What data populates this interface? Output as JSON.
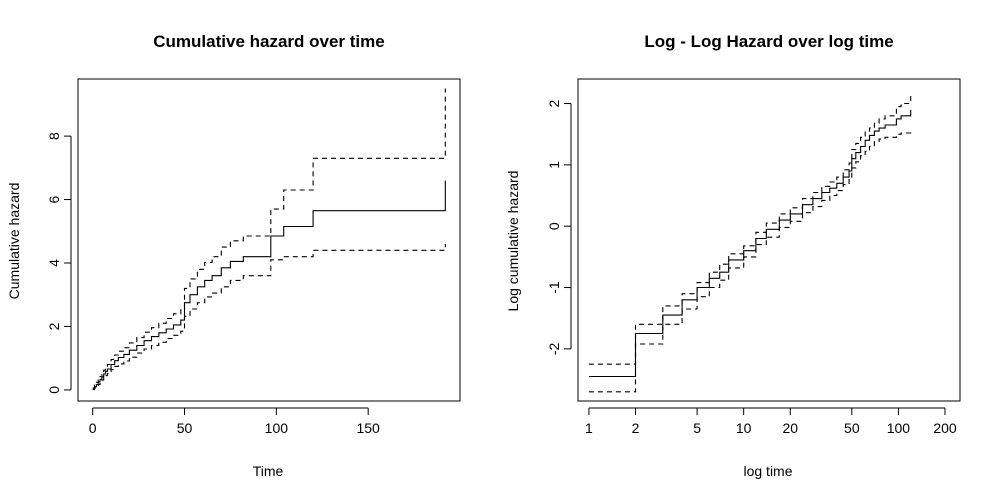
{
  "chart_data": [
    {
      "type": "line",
      "title": "Cumulative hazard over time",
      "xlabel": "Time",
      "ylabel": "Cumulative hazard",
      "xlim": [
        -8,
        200
      ],
      "ylim": [
        -0.35,
        9.8
      ],
      "xticks": [
        0,
        50,
        100,
        150
      ],
      "yticks": [
        0,
        2,
        4,
        6,
        8
      ],
      "xscale": "linear",
      "grid": false,
      "series": [
        {
          "style": "solid",
          "x": [
            0,
            1,
            2,
            3,
            4,
            5,
            6,
            7,
            8,
            10,
            12,
            14,
            17,
            20,
            24,
            28,
            32,
            36,
            40,
            44,
            48,
            50,
            53,
            57,
            61,
            65,
            70,
            75,
            82,
            97,
            104,
            120,
            192,
            192
          ],
          "y": [
            0.03,
            0.1,
            0.17,
            0.25,
            0.33,
            0.41,
            0.5,
            0.58,
            0.66,
            0.8,
            0.92,
            1.02,
            1.12,
            1.25,
            1.4,
            1.55,
            1.68,
            1.8,
            1.92,
            2.05,
            2.2,
            2.75,
            3.0,
            3.25,
            3.45,
            3.6,
            3.85,
            4.05,
            4.2,
            4.85,
            5.15,
            5.65,
            5.65,
            6.6
          ]
        },
        {
          "style": "dashed",
          "x": [
            0,
            1,
            2,
            3,
            4,
            5,
            6,
            7,
            8,
            10,
            12,
            14,
            17,
            20,
            24,
            28,
            32,
            36,
            40,
            44,
            48,
            50,
            53,
            57,
            61,
            65,
            70,
            75,
            82,
            97,
            104,
            120,
            192,
            192
          ],
          "y": [
            0.06,
            0.15,
            0.24,
            0.33,
            0.42,
            0.52,
            0.62,
            0.71,
            0.8,
            0.96,
            1.1,
            1.22,
            1.33,
            1.48,
            1.65,
            1.82,
            1.96,
            2.1,
            2.25,
            2.4,
            2.57,
            3.2,
            3.5,
            3.8,
            4.02,
            4.2,
            4.5,
            4.7,
            4.85,
            5.7,
            6.3,
            7.3,
            7.3,
            9.5
          ]
        },
        {
          "style": "dashed",
          "x": [
            0,
            1,
            2,
            3,
            4,
            5,
            6,
            7,
            8,
            10,
            12,
            14,
            17,
            20,
            24,
            28,
            32,
            36,
            40,
            44,
            48,
            50,
            53,
            57,
            61,
            65,
            70,
            75,
            82,
            97,
            104,
            120,
            192,
            192
          ],
          "y": [
            0.01,
            0.06,
            0.11,
            0.17,
            0.24,
            0.31,
            0.38,
            0.45,
            0.52,
            0.64,
            0.74,
            0.82,
            0.91,
            1.03,
            1.16,
            1.29,
            1.4,
            1.5,
            1.62,
            1.72,
            1.85,
            2.32,
            2.55,
            2.75,
            2.93,
            3.05,
            3.25,
            3.45,
            3.6,
            4.1,
            4.2,
            4.4,
            4.4,
            4.6
          ]
        }
      ]
    },
    {
      "type": "line",
      "title": "Log - Log Hazard over log time",
      "xlabel": "log time",
      "ylabel": "Log cumulative hazard",
      "xlim": [
        0.85,
        250
      ],
      "ylim": [
        -2.85,
        2.4
      ],
      "xticks": [
        1,
        2,
        5,
        10,
        20,
        50,
        100,
        200
      ],
      "yticks": [
        -2,
        -1,
        0,
        1,
        2
      ],
      "xscale": "log",
      "grid": false,
      "series": [
        {
          "style": "solid",
          "x": [
            1,
            2,
            3,
            4,
            5,
            6,
            7,
            8,
            10,
            12,
            14,
            17,
            20,
            24,
            28,
            32,
            36,
            40,
            44,
            48,
            50,
            53,
            57,
            61,
            65,
            70,
            75,
            82,
            97,
            104,
            120,
            120
          ],
          "y": [
            -2.45,
            -1.75,
            -1.45,
            -1.2,
            -1.0,
            -0.85,
            -0.75,
            -0.55,
            -0.4,
            -0.2,
            -0.05,
            0.1,
            0.2,
            0.35,
            0.45,
            0.55,
            0.62,
            0.7,
            0.8,
            0.9,
            1.1,
            1.2,
            1.3,
            1.4,
            1.48,
            1.55,
            1.6,
            1.65,
            1.75,
            1.8,
            1.85,
            1.9
          ]
        },
        {
          "style": "dashed",
          "x": [
            1,
            2,
            3,
            4,
            5,
            6,
            7,
            8,
            10,
            12,
            14,
            17,
            20,
            24,
            28,
            32,
            36,
            40,
            44,
            48,
            50,
            53,
            57,
            61,
            65,
            70,
            75,
            82,
            97,
            104,
            120,
            120
          ],
          "y": [
            -2.25,
            -1.6,
            -1.3,
            -1.1,
            -0.92,
            -0.75,
            -0.62,
            -0.45,
            -0.32,
            -0.1,
            0.05,
            0.2,
            0.3,
            0.45,
            0.55,
            0.65,
            0.72,
            0.8,
            0.92,
            1.03,
            1.25,
            1.35,
            1.45,
            1.55,
            1.6,
            1.68,
            1.75,
            1.8,
            1.95,
            2.0,
            2.05,
            2.15
          ]
        },
        {
          "style": "dashed",
          "x": [
            1,
            2,
            3,
            4,
            5,
            6,
            7,
            8,
            10,
            12,
            14,
            17,
            20,
            24,
            28,
            32,
            36,
            40,
            44,
            48,
            50,
            53,
            57,
            61,
            65,
            70,
            75,
            82,
            97,
            104,
            120,
            120
          ],
          "y": [
            -2.7,
            -1.92,
            -1.6,
            -1.35,
            -1.15,
            -1.0,
            -0.88,
            -0.68,
            -0.5,
            -0.3,
            -0.18,
            -0.02,
            0.08,
            0.22,
            0.32,
            0.42,
            0.5,
            0.58,
            0.68,
            0.76,
            0.95,
            1.05,
            1.15,
            1.22,
            1.3,
            1.38,
            1.42,
            1.45,
            1.5,
            1.52,
            1.55,
            1.57
          ]
        }
      ]
    }
  ]
}
